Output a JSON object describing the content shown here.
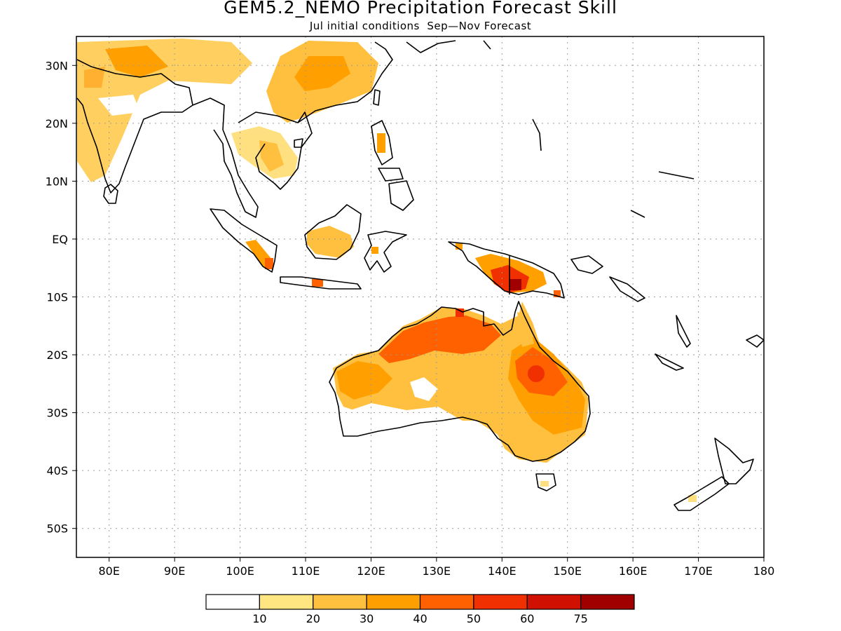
{
  "title": "GEM5.2_NEMO Precipitation Forecast Skill",
  "subtitle": "Jul initial conditions  Sep—Nov Forecast",
  "map": {
    "lon_range": [
      75,
      180
    ],
    "lat_range": [
      -55,
      35
    ],
    "lon_ticks": [
      {
        "value": 80,
        "label": "80E"
      },
      {
        "value": 90,
        "label": "90E"
      },
      {
        "value": 100,
        "label": "100E"
      },
      {
        "value": 110,
        "label": "110E"
      },
      {
        "value": 120,
        "label": "120E"
      },
      {
        "value": 130,
        "label": "130E"
      },
      {
        "value": 140,
        "label": "140E"
      },
      {
        "value": 150,
        "label": "150E"
      },
      {
        "value": 160,
        "label": "160E"
      },
      {
        "value": 170,
        "label": "170E"
      },
      {
        "value": 180,
        "label": "180"
      }
    ],
    "lat_ticks": [
      {
        "value": 30,
        "label": "30N"
      },
      {
        "value": 20,
        "label": "20N"
      },
      {
        "value": 10,
        "label": "10N"
      },
      {
        "value": 0,
        "label": "EQ"
      },
      {
        "value": -10,
        "label": "10S"
      },
      {
        "value": -20,
        "label": "20S"
      },
      {
        "value": -30,
        "label": "30S"
      },
      {
        "value": -40,
        "label": "40S"
      },
      {
        "value": -50,
        "label": "50S"
      }
    ],
    "grid": true
  },
  "legend": {
    "colors": [
      "#ffffff",
      "#ffe680",
      "#ffc040",
      "#ffa000",
      "#ff6000",
      "#f03000",
      "#d01000",
      "#a00000"
    ],
    "labels": [
      "10",
      "20",
      "30",
      "40",
      "50",
      "60",
      "75"
    ]
  },
  "colors": {
    "coast": "#000000",
    "grid": "#9a9a9a",
    "frame": "#000000"
  }
}
